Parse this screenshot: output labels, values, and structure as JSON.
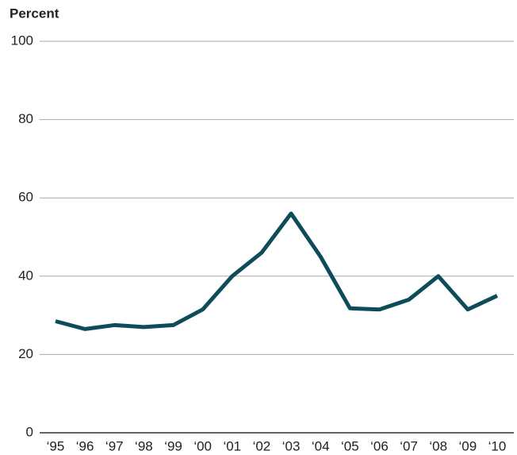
{
  "chart_data": {
    "type": "line",
    "title": "Percent",
    "categories": [
      "‘95",
      "‘96",
      "‘97",
      "‘98",
      "‘99",
      "‘00",
      "‘01",
      "‘02",
      "‘03",
      "‘04",
      "‘05",
      "‘06",
      "‘07",
      "‘08",
      "‘09",
      "‘10"
    ],
    "series": [
      {
        "name": "Percent",
        "color": "#0f4c5a",
        "values": [
          28.5,
          26.5,
          27.5,
          27,
          27.5,
          31.5,
          40,
          46,
          56,
          45,
          31.8,
          31.5,
          34,
          40,
          31.5,
          35
        ]
      }
    ],
    "ylim": [
      0,
      100
    ],
    "yticks": [
      0,
      20,
      40,
      60,
      80,
      100
    ],
    "grid": true
  }
}
